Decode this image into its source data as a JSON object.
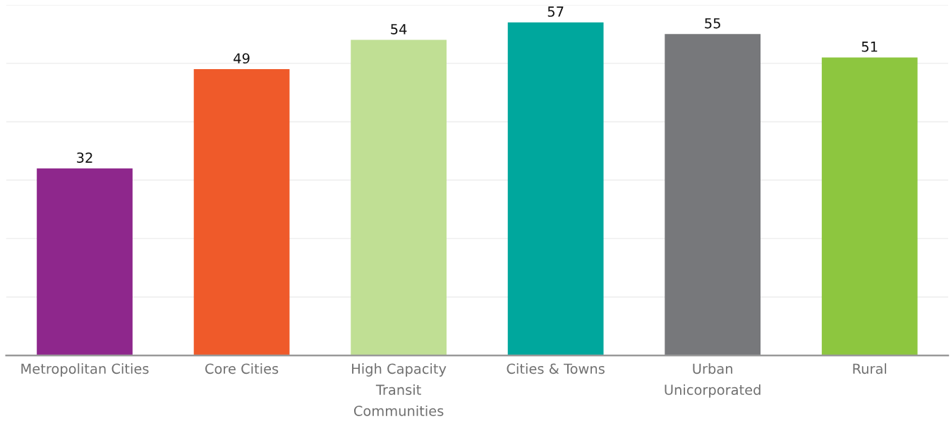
{
  "chart_data": {
    "type": "bar",
    "categories": [
      "Metropolitan Cities",
      "Core Cities",
      "High Capacity\nTransit\nCommunities",
      "Cities & Towns",
      "Urban\nUnicorporated",
      "Rural"
    ],
    "values": [
      32,
      49,
      54,
      57,
      55,
      51
    ],
    "colors": [
      "#8e278c",
      "#ef5a2a",
      "#c0df94",
      "#00a79d",
      "#77787b",
      "#8dc63f"
    ],
    "ylim": [
      0,
      60
    ],
    "yticks": [
      {
        "value": 0,
        "label": null
      },
      {
        "value": 10,
        "label": null
      },
      {
        "value": 20,
        "label": null
      },
      {
        "value": 30,
        "label": null
      },
      {
        "value": 40,
        "label": null
      },
      {
        "value": 50,
        "label": null
      },
      {
        "value": 60,
        "label": null
      }
    ],
    "grid": "y",
    "tick_labels": "x",
    "data_labels": true
  }
}
